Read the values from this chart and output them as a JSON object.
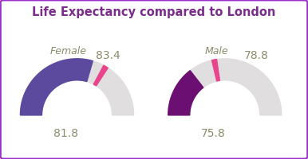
{
  "title": "Life Expectancy compared to London",
  "title_color": "#7B2D8B",
  "border_color": "#9B30C8",
  "categories": [
    "Female",
    "Male"
  ],
  "ward_values": [
    81.8,
    75.8
  ],
  "london_values": [
    83.4,
    78.8
  ],
  "ward_colors": [
    "#5B4A9E",
    "#6B0F72"
  ],
  "london_color": "#E0DEDE",
  "pink_color": "#E8458C",
  "number_color": "#8B8B6B",
  "label_color": "#8B8B6B",
  "arc_min": 70,
  "arc_max": 90,
  "background_color": "#FFFFFF",
  "label_fontsize": 9,
  "value_fontsize": 10,
  "title_fontsize": 10.5
}
